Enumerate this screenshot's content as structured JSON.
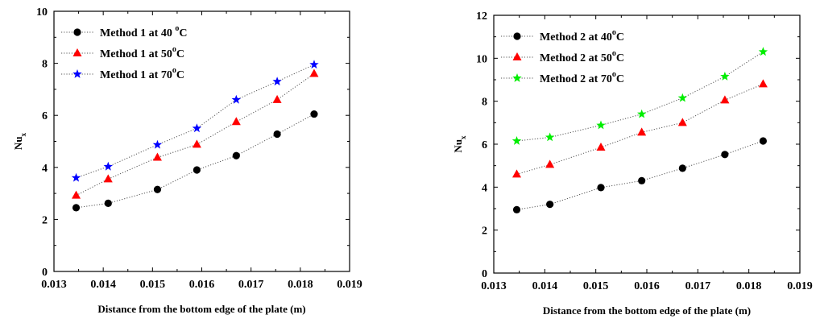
{
  "chart_data": [
    {
      "type": "line",
      "line_style": "dotted",
      "x": [
        0.01345,
        0.0141,
        0.0151,
        0.0159,
        0.0167,
        0.01753,
        0.01828
      ],
      "series": [
        {
          "name": "Method 1 at 40 °C",
          "legend_parts": [
            "Method 1 at 40 ",
            "o",
            "C"
          ],
          "marker": "circle",
          "color": "#000000",
          "values": [
            2.45,
            2.62,
            3.15,
            3.9,
            4.45,
            5.28,
            6.05
          ]
        },
        {
          "name": "Method 1 at 50°C",
          "legend_parts": [
            "Method 1 at 50",
            "o",
            "C"
          ],
          "marker": "triangle",
          "color": "#ff0000",
          "values": [
            2.92,
            3.55,
            4.38,
            4.88,
            5.75,
            6.6,
            7.6
          ]
        },
        {
          "name": "Method 1 at 70°C",
          "legend_parts": [
            "Method 1 at 70",
            "o",
            "C"
          ],
          "marker": "star",
          "color": "#0000ff",
          "values": [
            3.6,
            4.03,
            4.87,
            5.5,
            6.6,
            7.3,
            7.95
          ]
        }
      ],
      "xlabel": "Distance from the bottom edge of the plate (m)",
      "ylabel": "Nu",
      "ylabel_sub": "x",
      "xlim": [
        0.013,
        0.019
      ],
      "ylim": [
        0,
        10
      ],
      "xticks": [
        "0.013",
        "0.014",
        "0.015",
        "0.016",
        "0.017",
        "0.018",
        "0.019"
      ],
      "yticks": [
        "0",
        "2",
        "4",
        "6",
        "8",
        "10"
      ],
      "legend_position": "top-left",
      "grid": false
    },
    {
      "type": "line",
      "line_style": "dotted",
      "x": [
        0.01345,
        0.0141,
        0.0151,
        0.0159,
        0.0167,
        0.01753,
        0.01828
      ],
      "series": [
        {
          "name": "Method 2 at 40°C",
          "legend_parts": [
            "Method 2 at 40",
            "o",
            "C"
          ],
          "marker": "circle",
          "color": "#000000",
          "values": [
            2.95,
            3.2,
            3.98,
            4.3,
            4.88,
            5.52,
            6.15
          ]
        },
        {
          "name": "Method 2 at 50°C",
          "legend_parts": [
            "Method 2 at 50",
            "o",
            "C"
          ],
          "marker": "triangle",
          "color": "#ff0000",
          "values": [
            4.6,
            5.05,
            5.85,
            6.55,
            7.0,
            8.05,
            8.8
          ]
        },
        {
          "name": "Method 2 at 70°C",
          "legend_parts": [
            "Method 2 at 70",
            "o",
            "C"
          ],
          "marker": "star",
          "color": "#00ee00",
          "values": [
            6.15,
            6.32,
            6.88,
            7.4,
            8.15,
            9.15,
            10.3
          ]
        }
      ],
      "xlabel": "Distance from the bottom edge of the plate (m)",
      "ylabel": "Nu",
      "ylabel_sub": "x",
      "xlim": [
        0.013,
        0.019
      ],
      "ylim": [
        0,
        12
      ],
      "xticks": [
        "0.013",
        "0.014",
        "0.015",
        "0.016",
        "0.017",
        "0.018",
        "0.019"
      ],
      "yticks": [
        "0",
        "2",
        "4",
        "6",
        "8",
        "10",
        "12"
      ],
      "legend_position": "top-left",
      "grid": false
    }
  ]
}
